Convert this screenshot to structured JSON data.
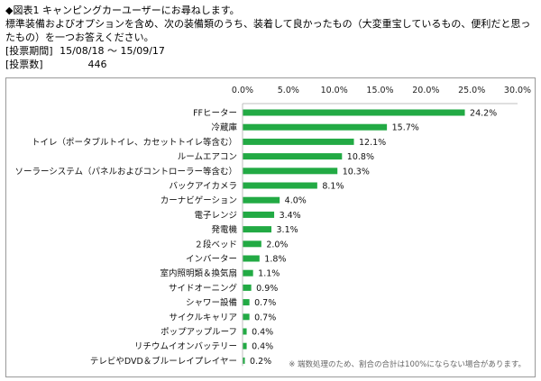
{
  "header": {
    "title": "◆図表1 キャンピングカーユーザーにお尋ねします。",
    "question": "標準装備およびオプションを含め、次の装備類のうち、装着して良かったもの（大変重宝しているもの、便利だと思ったもの）を一つお答えください。",
    "period_label": "[投票期間]",
    "period_value": "15/08/18 ～ 15/09/17",
    "votes_label": "[投票数]",
    "votes_value": "446"
  },
  "chart_data": {
    "type": "bar",
    "orientation": "horizontal",
    "categories": [
      "FFヒーター",
      "冷蔵庫",
      "トイレ（ポータブルトイレ、カセットトイレ等含む）",
      "ルームエアコン",
      "ソーラーシステム（パネルおよびコントローラー等含む）",
      "バックアイカメラ",
      "カーナビゲーション",
      "電子レンジ",
      "発電機",
      "２段ベッド",
      "インバーター",
      "室内照明類＆換気扇",
      "サイドオーニング",
      "シャワー設備",
      "サイクルキャリア",
      "ポップアップルーフ",
      "リチウムイオンバッテリー",
      "テレビやDVD＆ブルーレイプレイヤー"
    ],
    "values": [
      24.2,
      15.7,
      12.1,
      10.8,
      10.3,
      8.1,
      4.0,
      3.4,
      3.1,
      2.0,
      1.8,
      1.1,
      0.9,
      0.7,
      0.7,
      0.4,
      0.4,
      0.2
    ],
    "value_labels": [
      "24.2%",
      "15.7%",
      "12.1%",
      "10.8%",
      "10.3%",
      "8.1%",
      "4.0%",
      "3.4%",
      "3.1%",
      "2.0%",
      "1.8%",
      "1.1%",
      "0.9%",
      "0.7%",
      "0.7%",
      "0.4%",
      "0.4%",
      "0.2%"
    ],
    "x_ticks": [
      "0.0%",
      "5.0%",
      "10.0%",
      "15.0%",
      "20.0%",
      "25.0%",
      "30.0%"
    ],
    "xlim": [
      0,
      30
    ],
    "axis_position": "top",
    "grid": false,
    "bar_color": "#22aa44"
  },
  "note": "※ 端数処理のため、割合の合計は100%にならない場合があります。"
}
